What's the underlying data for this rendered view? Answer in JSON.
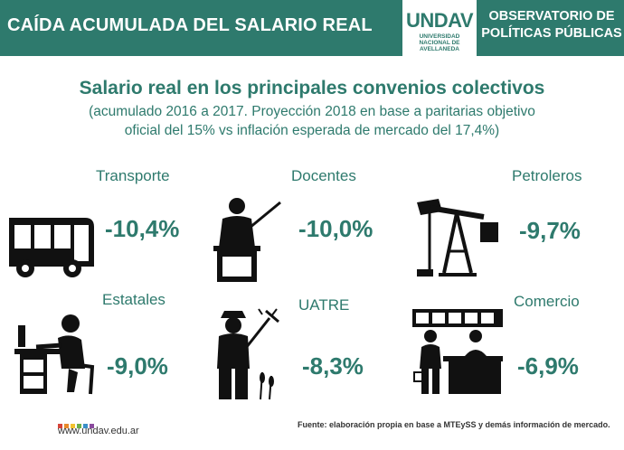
{
  "header": {
    "title": "CAÍDA ACUMULADA DEL SALARIO REAL",
    "logo_word": "UNDAV",
    "logo_sub": [
      "UNIVERSIDAD",
      "NACIONAL DE",
      "AVELLANEDA"
    ],
    "observatorio": [
      "OBSERVATORIO DE",
      "POLÍTICAS PÚBLICAS"
    ]
  },
  "main": {
    "title": "Salario real en los principales convenios colectivos",
    "subtitle_line1": "(acumulado 2016 a 2017. Proyección 2018 en base a paritarias objetivo",
    "subtitle_line2": "oficial del 15% vs inflación esperada de mercado del 17,4%)"
  },
  "items": [
    {
      "label": "Transporte",
      "value": "-10,4%",
      "icon": "bus-icon"
    },
    {
      "label": "Docentes",
      "value": "-10,0%",
      "icon": "teacher-icon"
    },
    {
      "label": "Petroleros",
      "value": "-9,7%",
      "icon": "oil-pump-icon"
    },
    {
      "label": "Estatales",
      "value": "-9,0%",
      "icon": "office-worker-icon"
    },
    {
      "label": "UATRE",
      "value": "-8,3%",
      "icon": "farmer-icon"
    },
    {
      "label": "Comercio",
      "value": "-6,9%",
      "icon": "shop-counter-icon"
    }
  ],
  "footer": {
    "url": "www.undav.edu.ar",
    "source": "Fuente: elaboración propia en base a MTEySS y demás información de mercado.",
    "dot_colors": [
      "#d6443a",
      "#e88a2b",
      "#f2c230",
      "#6cae4a",
      "#3a8fc8",
      "#8a4a9e"
    ]
  },
  "colors": {
    "accent": "#2e7a6d",
    "icon": "#111111"
  }
}
